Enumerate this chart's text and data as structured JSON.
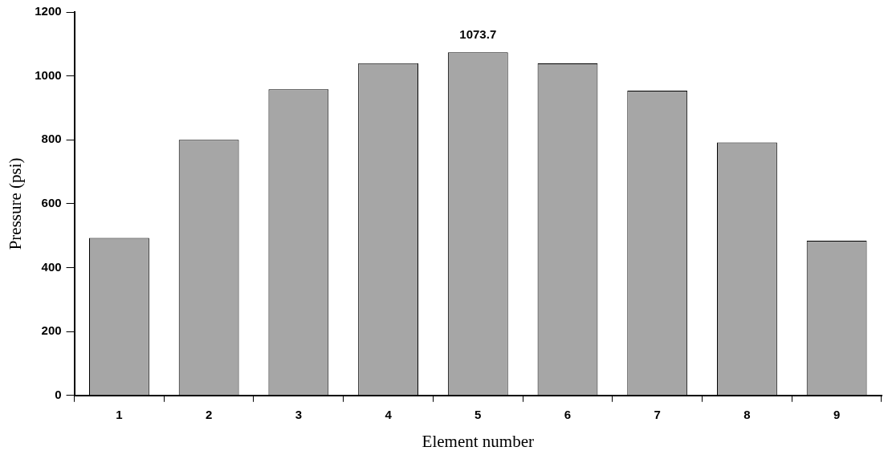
{
  "chart_data": {
    "type": "bar",
    "xlabel": "Element number",
    "ylabel": "Pressure (psi)",
    "categories": [
      "1",
      "2",
      "3",
      "4",
      "5",
      "6",
      "7",
      "8",
      "9"
    ],
    "values": [
      493,
      800,
      958,
      1040,
      1073.7,
      1039,
      954,
      792,
      484
    ],
    "value_labels": [
      null,
      null,
      null,
      null,
      "1073.7",
      null,
      null,
      null,
      null
    ],
    "color": "#a6a6a6",
    "ylim": [
      0,
      1200
    ],
    "yticks": [
      0,
      200,
      400,
      600,
      800,
      1000,
      1200
    ],
    "grid": false,
    "legend": false
  }
}
